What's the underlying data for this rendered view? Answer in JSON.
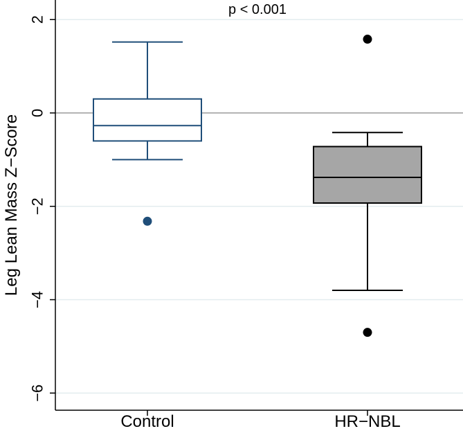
{
  "chart_data": {
    "type": "box",
    "ylabel": "Leg Lean Mass Z−Score",
    "xlabel": "",
    "ylim": [
      -6.5,
      2.5
    ],
    "yticks": [
      2,
      0,
      -2,
      -4,
      -6
    ],
    "ytick_labels": [
      "2",
      "0",
      "−2",
      "−4",
      "−6"
    ],
    "reference_line_y": 0,
    "grid": true,
    "annotation": "p < 0.001",
    "categories": [
      "Control",
      "HR−NBL"
    ],
    "boxes": [
      {
        "category": "Control",
        "whisker_low": -1.0,
        "q1": -0.6,
        "median": -0.27,
        "q3": 0.3,
        "whisker_high": 1.52,
        "outliers": [
          -2.32
        ],
        "fill": "#ffffff",
        "stroke": "#1f4e79",
        "outlier_color": "#1f4e79"
      },
      {
        "category": "HR−NBL",
        "whisker_low": -3.8,
        "q1": -1.93,
        "median": -1.38,
        "q3": -0.72,
        "whisker_high": -0.42,
        "outliers": [
          1.58,
          -4.7
        ],
        "fill": "#a6a6a6",
        "stroke": "#000000",
        "outlier_color": "#000000"
      }
    ]
  }
}
